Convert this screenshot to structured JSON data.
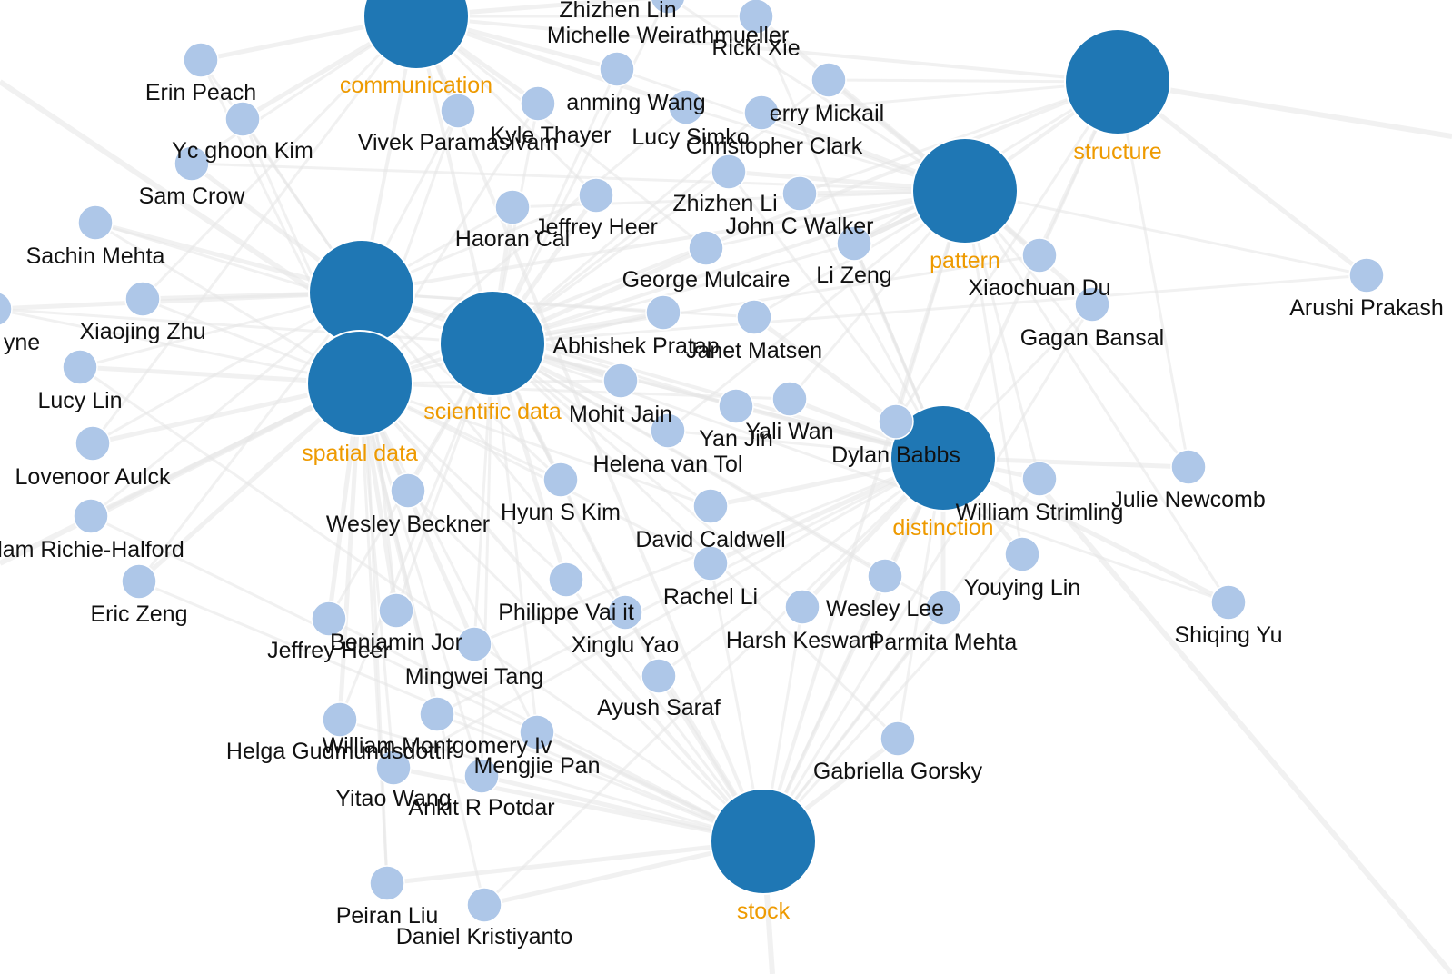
{
  "graph": {
    "colors": {
      "topic_node": "#1f77b4",
      "person_node": "#aec7e8",
      "topic_label": "#ee9a00",
      "person_label": "#111111",
      "link": "#e6e6e6"
    },
    "topics": [
      {
        "id": "communication",
        "label": "communication"
      },
      {
        "id": "structure",
        "label": "structure"
      },
      {
        "id": "pattern",
        "label": "pattern"
      },
      {
        "id": "unlabeled-topic",
        "label": ""
      },
      {
        "id": "spatial-data",
        "label": "spatial data"
      },
      {
        "id": "scientific-data",
        "label": "scientific data"
      },
      {
        "id": "distinction",
        "label": "distinction"
      },
      {
        "id": "stock",
        "label": "stock"
      }
    ],
    "people": [
      {
        "id": "p-zhizhen-top",
        "label": "Zhizhen Lin"
      },
      {
        "id": "p-michelle",
        "label": "Michelle Weirathmueller"
      },
      {
        "id": "p-ricki",
        "label": "Ricki Xie"
      },
      {
        "id": "p-erin",
        "label": "Erin Peach"
      },
      {
        "id": "p-yanming",
        "label": "anming Wang"
      },
      {
        "id": "p-jerry",
        "label": "erry Mickail"
      },
      {
        "id": "p-younghoon",
        "label": "Yc ghoon Kim"
      },
      {
        "id": "p-vivek",
        "label": "Vivek Paramasivam"
      },
      {
        "id": "p-kyle",
        "label": "Kyle Thayer"
      },
      {
        "id": "p-lucy-simko",
        "label": "Lucy Simko"
      },
      {
        "id": "p-christopher",
        "label": "Christopher Clark"
      },
      {
        "id": "p-sam",
        "label": "Sam Crow"
      },
      {
        "id": "p-zhizhen-mid",
        "label": "Zhizhen Li"
      },
      {
        "id": "p-sachin",
        "label": "Sachin Mehta"
      },
      {
        "id": "p-haoran",
        "label": "Haoran Cai"
      },
      {
        "id": "p-jeffrey-heer-1",
        "label": "Jeffrey Heer"
      },
      {
        "id": "p-john",
        "label": "John C Walker"
      },
      {
        "id": "p-george",
        "label": "George Mulcaire"
      },
      {
        "id": "p-li-zeng",
        "label": "Li Zeng"
      },
      {
        "id": "p-xiaochuan",
        "label": "Xiaochuan Du"
      },
      {
        "id": "p-arushi",
        "label": "Arushi Prakash"
      },
      {
        "id": "p-yne",
        "label": "yne"
      },
      {
        "id": "p-xiaojing",
        "label": "Xiaojing Zhu"
      },
      {
        "id": "p-gagan",
        "label": "Gagan Bansal"
      },
      {
        "id": "p-abhishek",
        "label": "Abhishek Pratap"
      },
      {
        "id": "p-janet",
        "label": "Janet Matsen"
      },
      {
        "id": "p-lucy-lin",
        "label": "Lucy Lin"
      },
      {
        "id": "p-mohit",
        "label": "Mohit Jain"
      },
      {
        "id": "p-yali",
        "label": "Yali Wan"
      },
      {
        "id": "p-yan-jin",
        "label": "Yan Jin"
      },
      {
        "id": "p-dylan",
        "label": "Dylan Babbs"
      },
      {
        "id": "p-lovenoor",
        "label": "Lovenoor Aulck"
      },
      {
        "id": "p-helena",
        "label": "Helena van Tol"
      },
      {
        "id": "p-julie",
        "label": "Julie Newcomb"
      },
      {
        "id": "p-william-strimling",
        "label": "William Strimling"
      },
      {
        "id": "p-wesley-beckner",
        "label": "Wesley Beckner"
      },
      {
        "id": "p-hyun",
        "label": "Hyun S Kim"
      },
      {
        "id": "p-david",
        "label": "David Caldwell"
      },
      {
        "id": "p-adam",
        "label": "lam Richie-Halford"
      },
      {
        "id": "p-youying",
        "label": "Youying Lin"
      },
      {
        "id": "p-rachel",
        "label": "Rachel Li"
      },
      {
        "id": "p-eric",
        "label": "Eric Zeng"
      },
      {
        "id": "p-philippe",
        "label": "Philippe Vai  it"
      },
      {
        "id": "p-wesley-lee",
        "label": "Wesley Lee"
      },
      {
        "id": "p-shiqing",
        "label": "Shiqing Yu"
      },
      {
        "id": "p-benjamin",
        "label": "Benjamin Jor"
      },
      {
        "id": "p-jeffrey-heer-2",
        "label": "Jeffrey Heer"
      },
      {
        "id": "p-xinglu",
        "label": "Xinglu Yao"
      },
      {
        "id": "p-harsh",
        "label": "Harsh Keswani"
      },
      {
        "id": "p-parmita",
        "label": "Parmita Mehta"
      },
      {
        "id": "p-mingwei",
        "label": "Mingwei Tang"
      },
      {
        "id": "p-ayush",
        "label": "Ayush Saraf"
      },
      {
        "id": "p-helga",
        "label": "Helga Gudmundsdottir"
      },
      {
        "id": "p-william-montgomery",
        "label": "William Montgomery Iv"
      },
      {
        "id": "p-mengjie",
        "label": "Mengjie Pan"
      },
      {
        "id": "p-gabriella",
        "label": "Gabriella Gorsky"
      },
      {
        "id": "p-yitao",
        "label": "Yitao Wang"
      },
      {
        "id": "p-ankit",
        "label": "Ankit R Potdar"
      },
      {
        "id": "p-peiran",
        "label": "Peiran Liu"
      },
      {
        "id": "p-daniel",
        "label": "Daniel Kristiyanto"
      }
    ]
  }
}
